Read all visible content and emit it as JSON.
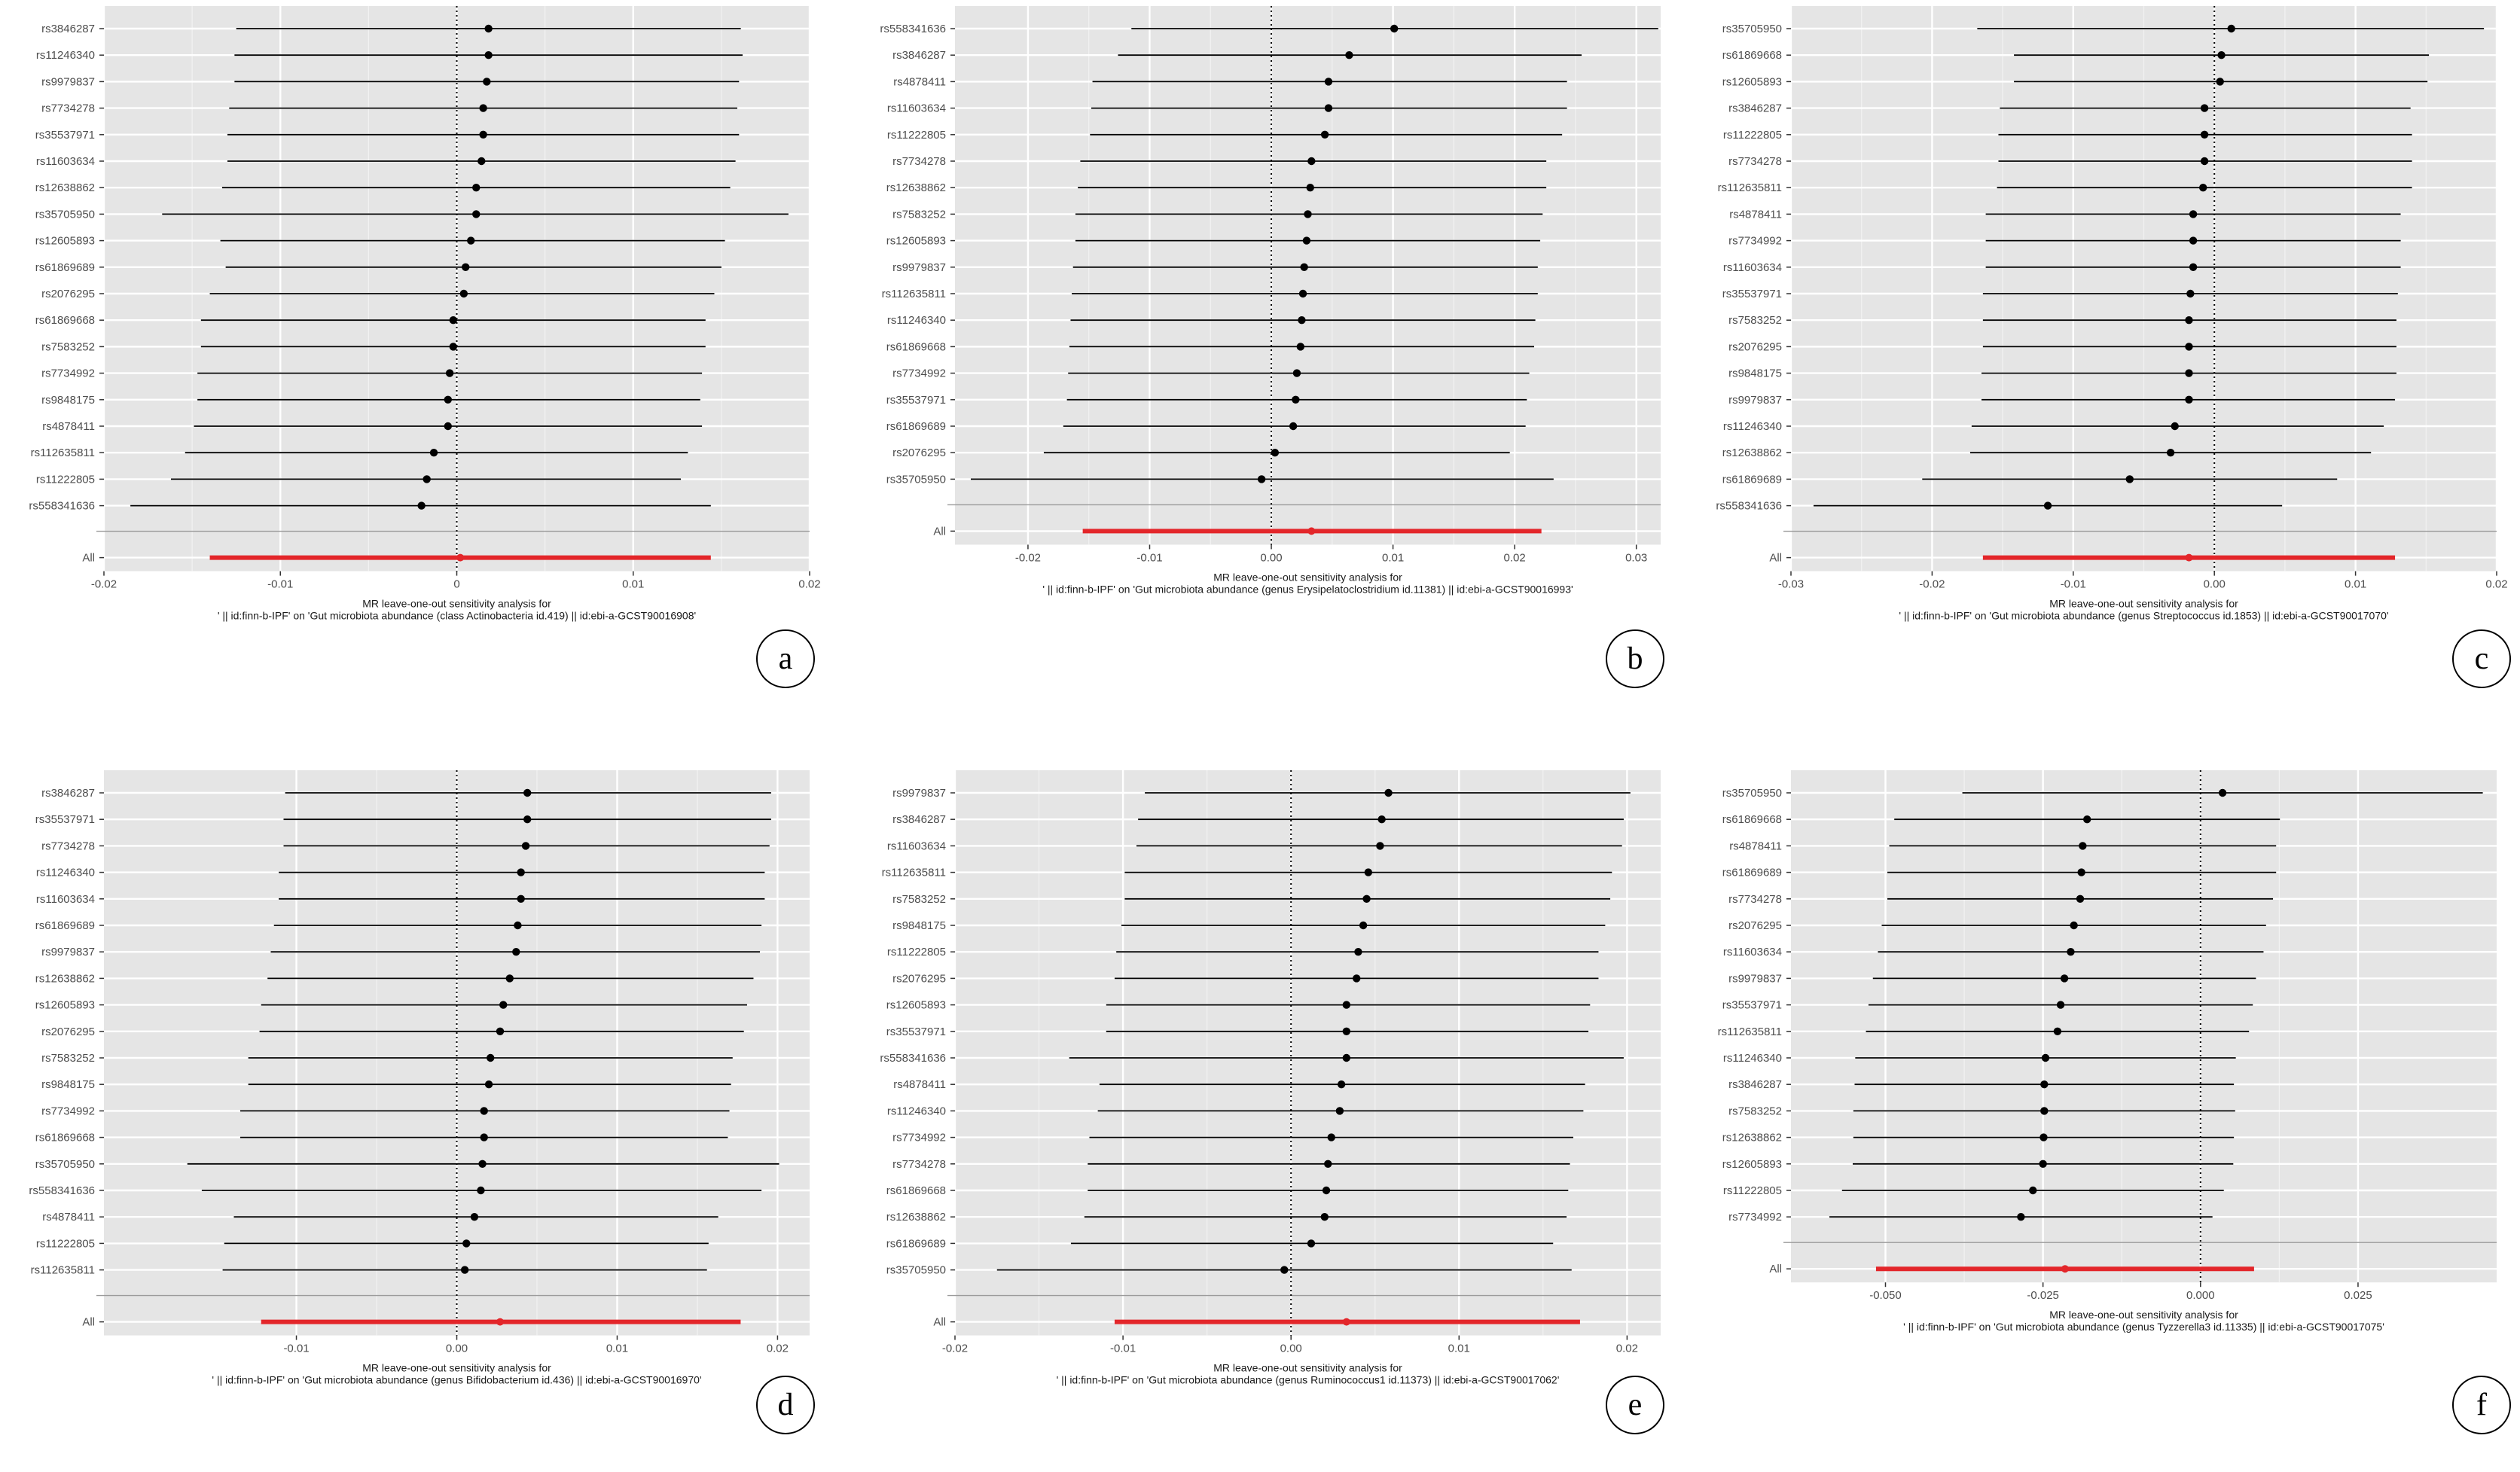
{
  "chart_data": [
    {
      "type": "scatter",
      "panel": "a",
      "xlabel": "MR leave-one-out sensitivity analysis for",
      "xlabel2": "' || id:finn-b-IPF' on 'Gut microbiota abundance (class Actinobacteria id.419) || id:ebi-a-GCST90016908'",
      "xlim": [
        -0.02,
        0.02
      ],
      "xticks": [
        -0.02,
        -0.01,
        0,
        0.01,
        0.02
      ],
      "tick_labels": [
        "-0.02",
        "-0.01",
        "0",
        "0.01",
        "0.02"
      ],
      "snps": [
        "rs3846287",
        "rs11246340",
        "rs9979837",
        "rs7734278",
        "rs35537971",
        "rs11603634",
        "rs12638862",
        "rs35705950",
        "rs12605893",
        "rs61869689",
        "rs2076295",
        "rs61869668",
        "rs7583252",
        "rs7734992",
        "rs9848175",
        "rs4878411",
        "rs112635811",
        "rs11222805",
        "rs558341636"
      ],
      "b": [
        0.0018,
        0.0018,
        0.0017,
        0.0015,
        0.0015,
        0.0014,
        0.0011,
        0.0011,
        0.0008,
        0.0005,
        0.0004,
        -0.0002,
        -0.0002,
        -0.0004,
        -0.0005,
        -0.0005,
        -0.0013,
        -0.0017,
        -0.002
      ],
      "lo": [
        -0.0125,
        -0.0126,
        -0.0126,
        -0.0129,
        -0.013,
        -0.013,
        -0.0133,
        -0.0167,
        -0.0134,
        -0.0131,
        -0.014,
        -0.0145,
        -0.0145,
        -0.0147,
        -0.0147,
        -0.0149,
        -0.0154,
        -0.0162,
        -0.0185
      ],
      "hi": [
        0.0161,
        0.0162,
        0.016,
        0.0159,
        0.016,
        0.0158,
        0.0155,
        0.0188,
        0.0152,
        0.015,
        0.0146,
        0.0141,
        0.0141,
        0.0139,
        0.0138,
        0.0139,
        0.0131,
        0.0127,
        0.0144
      ],
      "all_label": "All",
      "all": {
        "b": 0.0002,
        "lo": -0.014,
        "hi": 0.0144
      }
    },
    {
      "type": "scatter",
      "panel": "b",
      "xlabel": "MR leave-one-out sensitivity analysis for",
      "xlabel2": "' || id:finn-b-IPF' on 'Gut microbiota abundance (genus Erysipelatoclostridium id.11381) || id:ebi-a-GCST90016993'",
      "xlim": [
        -0.026,
        0.032
      ],
      "xticks": [
        -0.02,
        -0.01,
        0,
        0.01,
        0.02,
        0.03
      ],
      "tick_labels": [
        "-0.02",
        "-0.01",
        "0.00",
        "0.01",
        "0.02",
        "0.03"
      ],
      "snps": [
        "rs558341636",
        "rs3846287",
        "rs4878411",
        "rs11603634",
        "rs11222805",
        "rs7734278",
        "rs12638862",
        "rs7583252",
        "rs12605893",
        "rs9979837",
        "rs112635811",
        "rs11246340",
        "rs61869668",
        "rs7734992",
        "rs35537971",
        "rs61869689",
        "rs2076295",
        "rs35705950"
      ],
      "b": [
        0.0101,
        0.0064,
        0.0047,
        0.0047,
        0.0044,
        0.0033,
        0.0032,
        0.003,
        0.0029,
        0.0027,
        0.0026,
        0.0025,
        0.0024,
        0.0021,
        0.002,
        0.0018,
        0.0003,
        -0.0008
      ],
      "lo": [
        -0.0115,
        -0.0126,
        -0.0147,
        -0.0148,
        -0.0149,
        -0.0157,
        -0.0159,
        -0.0161,
        -0.0161,
        -0.0163,
        -0.0164,
        -0.0165,
        -0.0166,
        -0.0167,
        -0.0168,
        -0.0171,
        -0.0187,
        -0.0247
      ],
      "hi": [
        0.0318,
        0.0255,
        0.0243,
        0.0243,
        0.0239,
        0.0226,
        0.0226,
        0.0223,
        0.0221,
        0.0219,
        0.0219,
        0.0217,
        0.0216,
        0.0212,
        0.021,
        0.0209,
        0.0196,
        0.0232
      ],
      "all_label": "All",
      "all": {
        "b": 0.0033,
        "lo": -0.0155,
        "hi": 0.0222
      }
    },
    {
      "type": "scatter",
      "panel": "c",
      "xlabel": "MR leave-one-out sensitivity analysis for",
      "xlabel2": "' || id:finn-b-IPF' on 'Gut microbiota abundance (genus Streptococcus id.1853) || id:ebi-a-GCST90017070'",
      "xlim": [
        -0.03,
        0.02
      ],
      "xticks": [
        -0.03,
        -0.02,
        -0.01,
        0,
        0.01,
        0.02
      ],
      "tick_labels": [
        "-0.03",
        "-0.02",
        "-0.01",
        "0.00",
        "0.01",
        "0.02"
      ],
      "snps": [
        "rs35705950",
        "rs61869668",
        "rs12605893",
        "rs3846287",
        "rs11222805",
        "rs7734278",
        "rs112635811",
        "rs4878411",
        "rs7734992",
        "rs11603634",
        "rs35537971",
        "rs7583252",
        "rs2076295",
        "rs9848175",
        "rs9979837",
        "rs11246340",
        "rs12638862",
        "rs61869689",
        "rs558341636"
      ],
      "b": [
        0.0012,
        0.0005,
        0.0004,
        -0.0007,
        -0.0007,
        -0.0007,
        -0.0008,
        -0.0015,
        -0.0015,
        -0.0015,
        -0.0017,
        -0.0018,
        -0.0018,
        -0.0018,
        -0.0018,
        -0.0028,
        -0.0031,
        -0.006,
        -0.0118
      ],
      "lo": [
        -0.0168,
        -0.0142,
        -0.0142,
        -0.0152,
        -0.0153,
        -0.0153,
        -0.0154,
        -0.0162,
        -0.0162,
        -0.0162,
        -0.0164,
        -0.0164,
        -0.0164,
        -0.0165,
        -0.0165,
        -0.0172,
        -0.0173,
        -0.0207,
        -0.0284
      ],
      "hi": [
        0.0191,
        0.0152,
        0.0151,
        0.0139,
        0.014,
        0.014,
        0.014,
        0.0132,
        0.0132,
        0.0132,
        0.013,
        0.0129,
        0.0129,
        0.0129,
        0.0128,
        0.012,
        0.0111,
        0.0087,
        0.0048
      ],
      "all_label": "All",
      "all": {
        "b": -0.0018,
        "lo": -0.0164,
        "hi": 0.0128
      }
    },
    {
      "type": "scatter",
      "panel": "d",
      "xlabel": "MR leave-one-out sensitivity analysis for",
      "xlabel2": "' || id:finn-b-IPF' on 'Gut microbiota abundance (genus Bifidobacterium id.436) || id:ebi-a-GCST90016970'",
      "xlim": [
        -0.022,
        0.022
      ],
      "xticks": [
        -0.01,
        0,
        0.01,
        0.02
      ],
      "tick_labels": [
        "-0.01",
        "0.00",
        "0.01",
        "0.02"
      ],
      "snps": [
        "rs3846287",
        "rs35537971",
        "rs7734278",
        "rs11246340",
        "rs11603634",
        "rs61869689",
        "rs9979837",
        "rs12638862",
        "rs12605893",
        "rs2076295",
        "rs7583252",
        "rs9848175",
        "rs7734992",
        "rs61869668",
        "rs35705950",
        "rs558341636",
        "rs4878411",
        "rs11222805",
        "rs112635811"
      ],
      "b": [
        0.0044,
        0.0044,
        0.0043,
        0.004,
        0.004,
        0.0038,
        0.0037,
        0.0033,
        0.0029,
        0.0027,
        0.0021,
        0.002,
        0.0017,
        0.0017,
        0.0016,
        0.0015,
        0.0011,
        0.0006,
        0.0005
      ],
      "lo": [
        -0.0107,
        -0.0108,
        -0.0108,
        -0.0111,
        -0.0111,
        -0.0114,
        -0.0116,
        -0.0118,
        -0.0122,
        -0.0123,
        -0.013,
        -0.013,
        -0.0135,
        -0.0135,
        -0.0168,
        -0.0159,
        -0.0139,
        -0.0145,
        -0.0146
      ],
      "hi": [
        0.0196,
        0.0196,
        0.0195,
        0.0192,
        0.0192,
        0.019,
        0.0189,
        0.0185,
        0.0181,
        0.0179,
        0.0172,
        0.0171,
        0.017,
        0.0169,
        0.0201,
        0.019,
        0.0163,
        0.0157,
        0.0156
      ],
      "all_label": "All",
      "all": {
        "b": 0.0027,
        "lo": -0.0122,
        "hi": 0.0177
      }
    },
    {
      "type": "scatter",
      "panel": "e",
      "xlabel": "MR leave-one-out sensitivity analysis for",
      "xlabel2": "' || id:finn-b-IPF' on 'Gut microbiota abundance (genus Ruminococcus1 id.11373) || id:ebi-a-GCST90017062'",
      "xlim": [
        -0.02,
        0.022
      ],
      "xticks": [
        -0.02,
        -0.01,
        0,
        0.01,
        0.02
      ],
      "tick_labels": [
        "-0.02",
        "-0.01",
        "0.00",
        "0.01",
        "0.02"
      ],
      "snps": [
        "rs9979837",
        "rs3846287",
        "rs11603634",
        "rs112635811",
        "rs7583252",
        "rs9848175",
        "rs11222805",
        "rs2076295",
        "rs12605893",
        "rs35537971",
        "rs558341636",
        "rs4878411",
        "rs11246340",
        "rs7734992",
        "rs7734278",
        "rs61869668",
        "rs12638862",
        "rs61869689",
        "rs35705950"
      ],
      "b": [
        0.0058,
        0.0054,
        0.0053,
        0.0046,
        0.0045,
        0.0043,
        0.004,
        0.0039,
        0.0033,
        0.0033,
        0.0033,
        0.003,
        0.0029,
        0.0024,
        0.0022,
        0.0021,
        0.002,
        0.0012,
        -0.0004
      ],
      "lo": [
        -0.0087,
        -0.0091,
        -0.0092,
        -0.0099,
        -0.0099,
        -0.0101,
        -0.0104,
        -0.0105,
        -0.011,
        -0.011,
        -0.0132,
        -0.0114,
        -0.0115,
        -0.012,
        -0.0121,
        -0.0121,
        -0.0123,
        -0.0131,
        -0.0175
      ],
      "hi": [
        0.0202,
        0.0198,
        0.0197,
        0.0191,
        0.019,
        0.0187,
        0.0183,
        0.0183,
        0.0178,
        0.0177,
        0.0198,
        0.0175,
        0.0174,
        0.0168,
        0.0166,
        0.0165,
        0.0164,
        0.0156,
        0.0167
      ],
      "all_label": "All",
      "all": {
        "b": 0.0033,
        "lo": -0.0105,
        "hi": 0.0172
      }
    },
    {
      "type": "scatter",
      "panel": "f",
      "xlabel": "MR leave-one-out sensitivity analysis for",
      "xlabel2": "' || id:finn-b-IPF' on 'Gut microbiota abundance (genus Tyzzerella3 id.11335) || id:ebi-a-GCST90017075'",
      "xlim": [
        -0.065,
        0.047
      ],
      "xticks": [
        -0.05,
        -0.025,
        0,
        0.025
      ],
      "tick_labels": [
        "-0.050",
        "-0.025",
        "0.000",
        "0.025"
      ],
      "snps": [
        "rs35705950",
        "rs61869668",
        "rs4878411",
        "rs61869689",
        "rs7734278",
        "rs2076295",
        "rs11603634",
        "rs9979837",
        "rs35537971",
        "rs112635811",
        "rs11246340",
        "rs3846287",
        "rs7583252",
        "rs12638862",
        "rs12605893",
        "rs11222805",
        "rs7734992"
      ],
      "b": [
        0.0035,
        -0.018,
        -0.0187,
        -0.0189,
        -0.0191,
        -0.0201,
        -0.0206,
        -0.0216,
        -0.0222,
        -0.0227,
        -0.0246,
        -0.0248,
        -0.0248,
        -0.0249,
        -0.025,
        -0.0266,
        -0.0285
      ],
      "lo": [
        -0.0378,
        -0.0486,
        -0.0494,
        -0.0497,
        -0.0497,
        -0.0506,
        -0.0512,
        -0.052,
        -0.0527,
        -0.0531,
        -0.0548,
        -0.0549,
        -0.0551,
        -0.0551,
        -0.0552,
        -0.0569,
        -0.0589
      ],
      "hi": [
        0.0448,
        0.0126,
        0.012,
        0.012,
        0.0115,
        0.0104,
        0.01,
        0.0088,
        0.0083,
        0.0077,
        0.0056,
        0.0053,
        0.0055,
        0.0053,
        0.0052,
        0.0037,
        0.0019
      ],
      "all_label": "All",
      "all": {
        "b": -0.0215,
        "lo": -0.0515,
        "hi": 0.0085
      }
    }
  ],
  "panels": [
    {
      "id": "a",
      "letter": "a"
    },
    {
      "id": "b",
      "letter": "b"
    },
    {
      "id": "c",
      "letter": "c"
    },
    {
      "id": "d",
      "letter": "d"
    },
    {
      "id": "e",
      "letter": "e"
    },
    {
      "id": "f",
      "letter": "f"
    }
  ]
}
